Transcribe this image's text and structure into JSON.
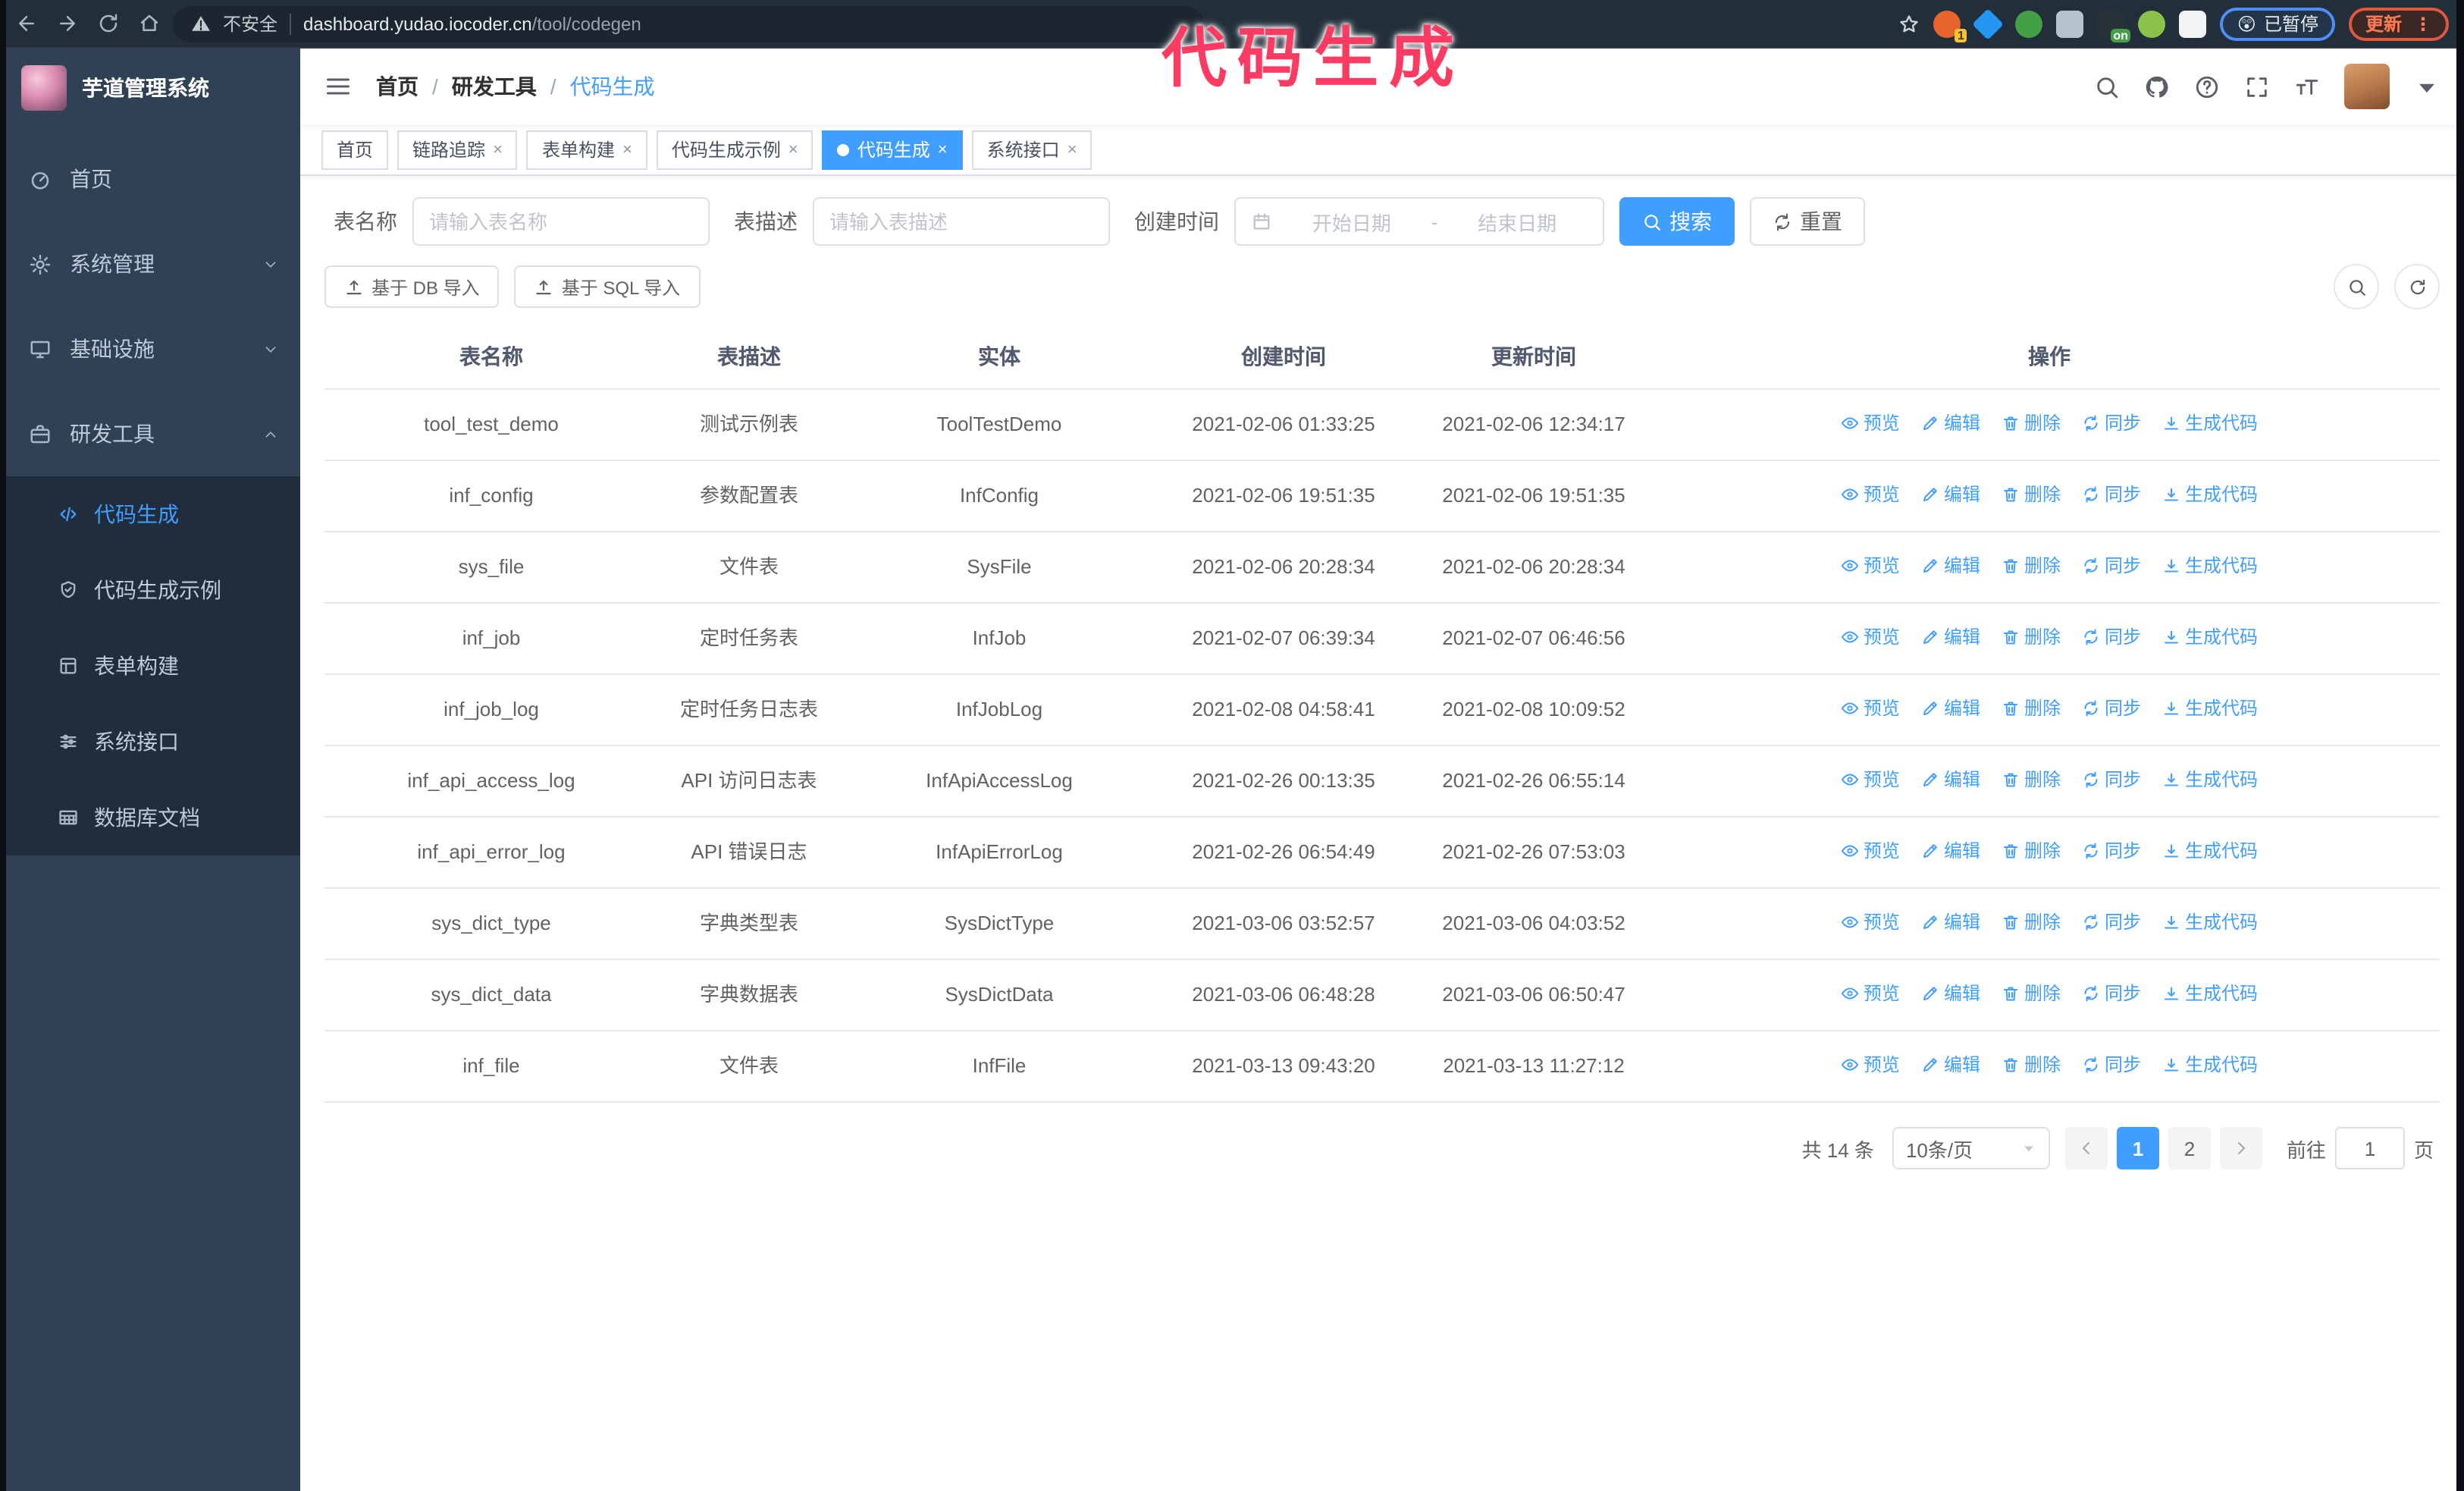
{
  "colors": {
    "accent": "#409EFF",
    "annotation": "#fb3b62",
    "sidebar_bg": "#304156",
    "submenu_bg": "#1f2d3d"
  },
  "annotation": {
    "text": "代码生成"
  },
  "browser": {
    "nav_icons": [
      "back-icon",
      "forward-icon",
      "reload-icon",
      "home-icon"
    ],
    "security_icon": "warning-icon",
    "security_label": "不安全",
    "url_host": "dashboard.yudao.iocoder.cn",
    "url_path": "/tool/codegen",
    "bookmark_icon": "star-icon",
    "extensions": [
      {
        "name": "extension-orange-icon",
        "color": "#e8622c",
        "badge": "1",
        "badge_style": "yellow",
        "shape": "circle"
      },
      {
        "name": "extension-gem-icon",
        "color": "#2196f3",
        "shape": "diamond"
      },
      {
        "name": "extension-check-icon",
        "color": "#43a047",
        "shape": "circle"
      },
      {
        "name": "extension-grid-icon",
        "color": "#b3c2cc",
        "shape": "square"
      },
      {
        "name": "extension-onoff-icon",
        "color": "#263238",
        "badge": "on",
        "badge_style": "green",
        "shape": "square"
      },
      {
        "name": "extension-droid-icon",
        "color": "#8bc34a",
        "shape": "circle"
      },
      {
        "name": "extension-puzzle-icon",
        "color": "#f2f4f5",
        "shape": "square"
      }
    ],
    "paused_badge": {
      "emoji": "😲",
      "label": "已暂停"
    },
    "update_button": {
      "label": "更新",
      "dots": "⋮"
    }
  },
  "sidebar": {
    "title": "芋道管理系统",
    "menu": [
      {
        "label": "首页",
        "icon": "dashboard-icon"
      },
      {
        "label": "系统管理",
        "icon": "gear-icon",
        "arrow": "chevron-down-icon"
      },
      {
        "label": "基础设施",
        "icon": "infra-icon",
        "arrow": "chevron-down-icon"
      },
      {
        "label": "研发工具",
        "icon": "briefcase-icon",
        "arrow": "chevron-up-icon",
        "expanded": true,
        "children": [
          {
            "label": "代码生成",
            "icon": "code-icon",
            "active": true
          },
          {
            "label": "代码生成示例",
            "icon": "shield-check-icon"
          },
          {
            "label": "表单构建",
            "icon": "form-icon"
          },
          {
            "label": "系统接口",
            "icon": "sliders-icon"
          },
          {
            "label": "数据库文档",
            "icon": "database-grid-icon"
          }
        ]
      }
    ]
  },
  "navbar": {
    "toggle_icon": "hamburger-icon",
    "breadcrumb": [
      "首页",
      "研发工具",
      "代码生成"
    ],
    "breadcrumb_separator": "/",
    "right_icons": [
      "search-icon",
      "github-icon",
      "help-icon",
      "fullscreen-icon",
      "font-size-icon"
    ],
    "user_caret_icon": "caret-down-icon"
  },
  "tabs": [
    {
      "label": "首页",
      "closable": false,
      "active": false
    },
    {
      "label": "链路追踪",
      "closable": true,
      "active": false
    },
    {
      "label": "表单构建",
      "closable": true,
      "active": false
    },
    {
      "label": "代码生成示例",
      "closable": true,
      "active": false
    },
    {
      "label": "代码生成",
      "closable": true,
      "active": true
    },
    {
      "label": "系统接口",
      "closable": true,
      "active": false
    }
  ],
  "filters": {
    "table_name_label": "表名称",
    "table_name_placeholder": "请输入表名称",
    "table_desc_label": "表描述",
    "table_desc_placeholder": "请输入表描述",
    "create_time_label": "创建时间",
    "date_icon": "calendar-icon",
    "date_start_placeholder": "开始日期",
    "range_separator": "-",
    "date_end_placeholder": "结束日期",
    "search_button": {
      "icon": "search-icon",
      "label": "搜索"
    },
    "reset_button": {
      "icon": "sync-icon",
      "label": "重置"
    }
  },
  "toolbar": {
    "db_import_button": {
      "icon": "upload-icon",
      "label": "基于 DB 导入"
    },
    "sql_import_button": {
      "icon": "upload-icon",
      "label": "基于 SQL 导入"
    },
    "round_buttons": [
      "search-icon",
      "refresh-icon"
    ]
  },
  "table": {
    "columns": [
      "表名称",
      "表描述",
      "实体",
      "创建时间",
      "更新时间",
      "操作"
    ],
    "rows": [
      {
        "name": "tool_test_demo",
        "desc": "测试示例表",
        "entity": "ToolTestDemo",
        "created": "2021-02-06 01:33:25",
        "updated": "2021-02-06 12:34:17"
      },
      {
        "name": "inf_config",
        "desc": "参数配置表",
        "entity": "InfConfig",
        "created": "2021-02-06 19:51:35",
        "updated": "2021-02-06 19:51:35"
      },
      {
        "name": "sys_file",
        "desc": "文件表",
        "entity": "SysFile",
        "created": "2021-02-06 20:28:34",
        "updated": "2021-02-06 20:28:34"
      },
      {
        "name": "inf_job",
        "desc": "定时任务表",
        "entity": "InfJob",
        "created": "2021-02-07 06:39:34",
        "updated": "2021-02-07 06:46:56"
      },
      {
        "name": "inf_job_log",
        "desc": "定时任务日志表",
        "entity": "InfJobLog",
        "created": "2021-02-08 04:58:41",
        "updated": "2021-02-08 10:09:52"
      },
      {
        "name": "inf_api_access_log",
        "desc": "API 访问日志表",
        "entity": "InfApiAccessLog",
        "created": "2021-02-26 00:13:35",
        "updated": "2021-02-26 06:55:14"
      },
      {
        "name": "inf_api_error_log",
        "desc": "API 错误日志",
        "entity": "InfApiErrorLog",
        "created": "2021-02-26 06:54:49",
        "updated": "2021-02-26 07:53:03"
      },
      {
        "name": "sys_dict_type",
        "desc": "字典类型表",
        "entity": "SysDictType",
        "created": "2021-03-06 03:52:57",
        "updated": "2021-03-06 04:03:52"
      },
      {
        "name": "sys_dict_data",
        "desc": "字典数据表",
        "entity": "SysDictData",
        "created": "2021-03-06 06:48:28",
        "updated": "2021-03-06 06:50:47"
      },
      {
        "name": "inf_file",
        "desc": "文件表",
        "entity": "InfFile",
        "created": "2021-03-13 09:43:20",
        "updated": "2021-03-13 11:27:12"
      }
    ],
    "row_actions": [
      {
        "icon": "eye-icon",
        "label": "预览"
      },
      {
        "icon": "edit-icon",
        "label": "编辑"
      },
      {
        "icon": "delete-icon",
        "label": "删除"
      },
      {
        "icon": "sync-icon",
        "label": "同步"
      },
      {
        "icon": "download-icon",
        "label": "生成代码"
      }
    ]
  },
  "pagination": {
    "total_label": "共 14 条",
    "page_size_label": "10条/页",
    "prev_icon": "chevron-left-icon",
    "pages": [
      "1",
      "2"
    ],
    "active_page": "1",
    "next_icon": "chevron-right-icon",
    "goto_label": "前往",
    "goto_value": "1",
    "goto_suffix": "页"
  }
}
